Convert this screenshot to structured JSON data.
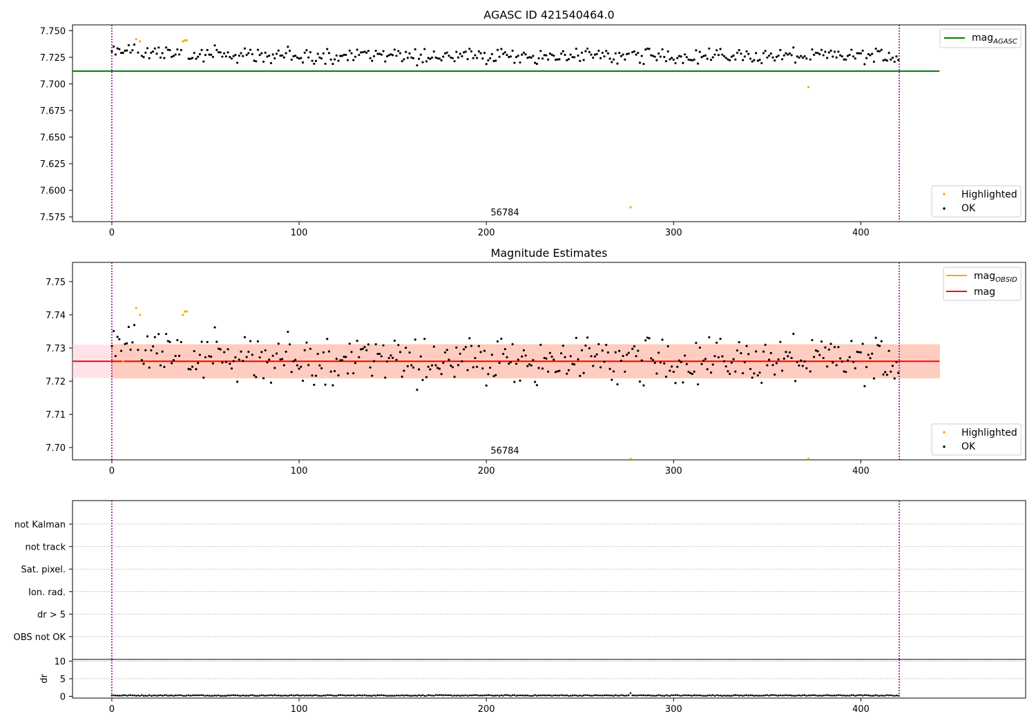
{
  "colors": {
    "ok": "#000000",
    "highlighted": "#ffa500",
    "agasc_line": "#008000",
    "obsid_line": "#ffa500",
    "mag_line": "#ff0000",
    "band_outer": "#ffc0cb",
    "band_inner": "#ffa07a",
    "obs_boundary": "#800080",
    "grid": "#b0b0b0"
  },
  "chart_data": [
    {
      "id": "agasc",
      "type": "scatter",
      "title": "AGASC ID 421540464.0",
      "xlim": [
        -21,
        488
      ],
      "ylim": [
        7.5705,
        7.7555
      ],
      "xticks": [
        0,
        100,
        200,
        300,
        400
      ],
      "yticks": [
        7.575,
        7.6,
        7.625,
        7.65,
        7.675,
        7.7,
        7.725,
        7.75
      ],
      "ytick_labels": [
        "7.575",
        "7.600",
        "7.625",
        "7.650",
        "7.675",
        "7.700",
        "7.725",
        "7.750"
      ],
      "obs_boundaries": [
        0,
        420.5
      ],
      "annotation": {
        "text": "56784",
        "x": 210
      },
      "reference_line": {
        "label": "mag",
        "sub": "AGASC",
        "value": 7.712,
        "x_range": [
          -21,
          442
        ]
      },
      "legend_top": [
        {
          "label": "mag",
          "sub": "AGASC",
          "kind": "line",
          "color": "agasc_line"
        }
      ],
      "legend_bottom": [
        {
          "label": "Highlighted",
          "kind": "point",
          "color": "highlighted"
        },
        {
          "label": "OK",
          "kind": "point",
          "color": "ok"
        }
      ],
      "series": [
        {
          "name": "OK",
          "n": 421,
          "values_model": "ok"
        },
        {
          "name": "Highlighted",
          "points": [
            [
              13,
              7.742
            ],
            [
              15,
              7.74
            ],
            [
              38,
              7.74
            ],
            [
              39,
              7.741
            ],
            [
              40,
              7.741
            ],
            [
              277,
              7.584
            ],
            [
              372,
              7.697
            ]
          ]
        }
      ]
    },
    {
      "id": "estimates",
      "type": "scatter",
      "title": "Magnitude Estimates",
      "xlim": [
        -21,
        488
      ],
      "ylim": [
        7.6963,
        7.7558
      ],
      "xticks": [
        0,
        100,
        200,
        300,
        400
      ],
      "yticks": [
        7.7,
        7.71,
        7.72,
        7.73,
        7.74,
        7.75
      ],
      "ytick_labels": [
        "7.70",
        "7.71",
        "7.72",
        "7.73",
        "7.74",
        "7.75"
      ],
      "obs_boundaries": [
        0,
        420.5
      ],
      "annotation": {
        "text": "56784",
        "x": 210
      },
      "mag_line": {
        "label": "mag",
        "value": 7.726
      },
      "obsid_line": {
        "label": "mag",
        "sub": "OBSID",
        "value": 7.726
      },
      "band_outer": [
        7.721,
        7.731
      ],
      "band_inner": [
        7.721,
        7.731
      ],
      "band_x_range": [
        -21,
        442
      ],
      "legend_top": [
        {
          "label": "mag",
          "sub": "OBSID",
          "kind": "line",
          "color": "obsid_line"
        },
        {
          "label": "mag",
          "kind": "line",
          "color": "mag_line"
        }
      ],
      "legend_bottom": [
        {
          "label": "Highlighted",
          "kind": "point",
          "color": "highlighted"
        },
        {
          "label": "OK",
          "kind": "point",
          "color": "ok"
        }
      ],
      "series": [
        {
          "name": "OK",
          "n": 421,
          "values_model": "ok"
        },
        {
          "name": "Highlighted",
          "points": [
            [
              6,
              7.726
            ],
            [
              13,
              7.742
            ],
            [
              15,
              7.74
            ],
            [
              38,
              7.74
            ],
            [
              39,
              7.741
            ],
            [
              40,
              7.741
            ],
            [
              277,
              7.6966
            ],
            [
              372,
              7.6966
            ]
          ]
        }
      ]
    },
    {
      "id": "flags",
      "type": "scatter",
      "title": "",
      "xlim": [
        -21,
        488
      ],
      "categories": [
        "not Kalman",
        "not track",
        "Sat. pixel.",
        "Ion. rad.",
        "dr > 5",
        "OBS not OK"
      ],
      "flagged_points": [],
      "obs_boundaries": [
        0,
        420.5
      ]
    },
    {
      "id": "dr",
      "type": "scatter",
      "title": "",
      "ylabel": "dr",
      "xlim": [
        -21,
        488
      ],
      "ylim": [
        -0.5,
        10.5
      ],
      "xticks": [
        0,
        100,
        200,
        300,
        400
      ],
      "yticks": [
        0,
        5,
        10
      ],
      "ytick_labels": [
        "0",
        "5",
        "10"
      ],
      "obs_boundaries": [
        0,
        420.5
      ],
      "series": [
        {
          "name": "dr",
          "n": 421,
          "typical": 0.25,
          "outliers": [
            [
              277,
              0.9
            ]
          ]
        }
      ]
    }
  ]
}
